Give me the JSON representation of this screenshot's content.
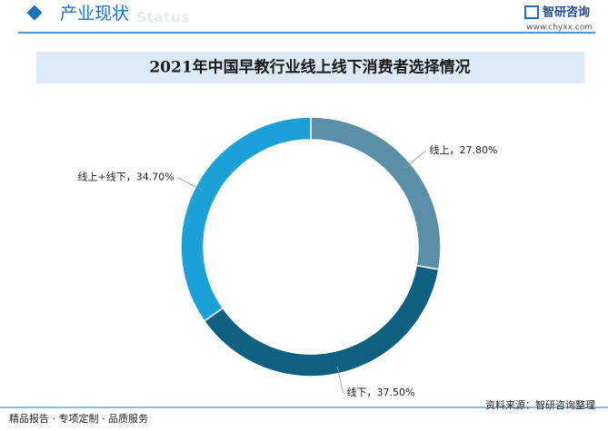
{
  "header": {
    "section": "产业现状",
    "section_en": "Status",
    "brand": "智研咨询",
    "url": "www.chyxx.com"
  },
  "chart_data": {
    "type": "donut",
    "title": "2021年中国早教行业线上线下消费者选择情况",
    "categories": [
      "线上",
      "线下",
      "线上+线下"
    ],
    "values": [
      27.8,
      37.5,
      34.7
    ],
    "value_labels": [
      "27.80%",
      "37.50%",
      "34.70%"
    ],
    "label_separator": "，",
    "colors": [
      "#5b8fa8",
      "#0e5f80",
      "#1ba1d8"
    ]
  },
  "footer": {
    "services": "精品报告 · 专项定制 · 品质服务",
    "source": "资料来源：智研咨询整理"
  }
}
